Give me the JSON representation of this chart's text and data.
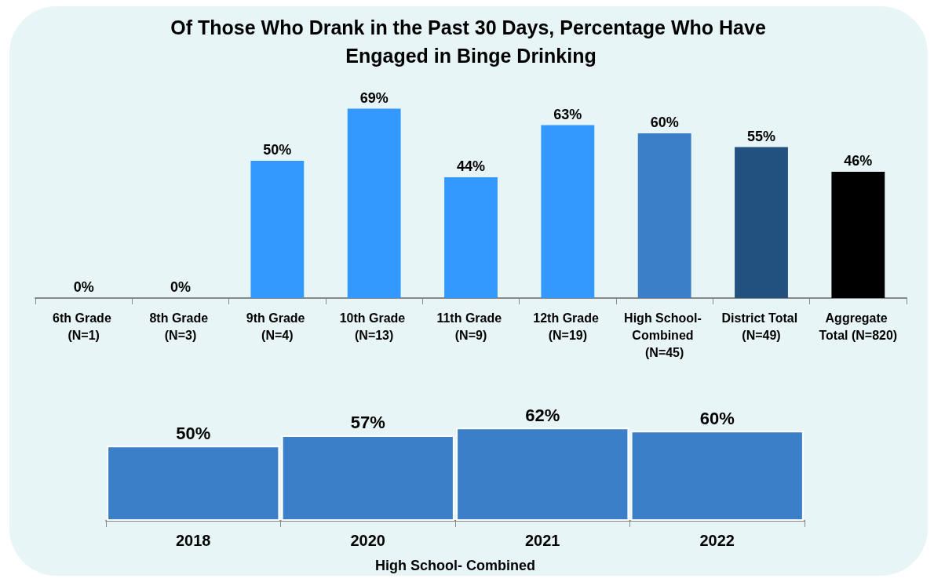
{
  "chart_data": [
    {
      "type": "bar",
      "title": "Of Those Who Drank in the Past 30 Days, Percentage Who Have Engaged in Binge Drinking",
      "categories": [
        "6th Grade (N=1)",
        "8th Grade (N=3)",
        "9th Grade (N=4)",
        "10th Grade (N=13)",
        "11th Grade (N=9)",
        "12th Grade (N=19)",
        "High School- Combined (N=45)",
        "District Total (N=49)",
        "Aggregate Total (N=820)"
      ],
      "values": [
        0,
        0,
        50,
        69,
        44,
        63,
        60,
        55,
        46
      ],
      "colors": [
        "#3399ff",
        "#3399ff",
        "#3399ff",
        "#3399ff",
        "#3399ff",
        "#3399ff",
        "#3a7fc8",
        "#22507f",
        "#000000"
      ],
      "value_labels": [
        "0%",
        "0%",
        "50%",
        "69%",
        "44%",
        "63%",
        "60%",
        "55%",
        "46%"
      ]
    },
    {
      "type": "bar",
      "xlabel": "High School- Combined",
      "categories": [
        "2018",
        "2020",
        "2021",
        "2022"
      ],
      "values": [
        50,
        57,
        62,
        60
      ],
      "color": "#3a7fc8",
      "value_labels": [
        "50%",
        "57%",
        "62%",
        "60%"
      ]
    }
  ]
}
